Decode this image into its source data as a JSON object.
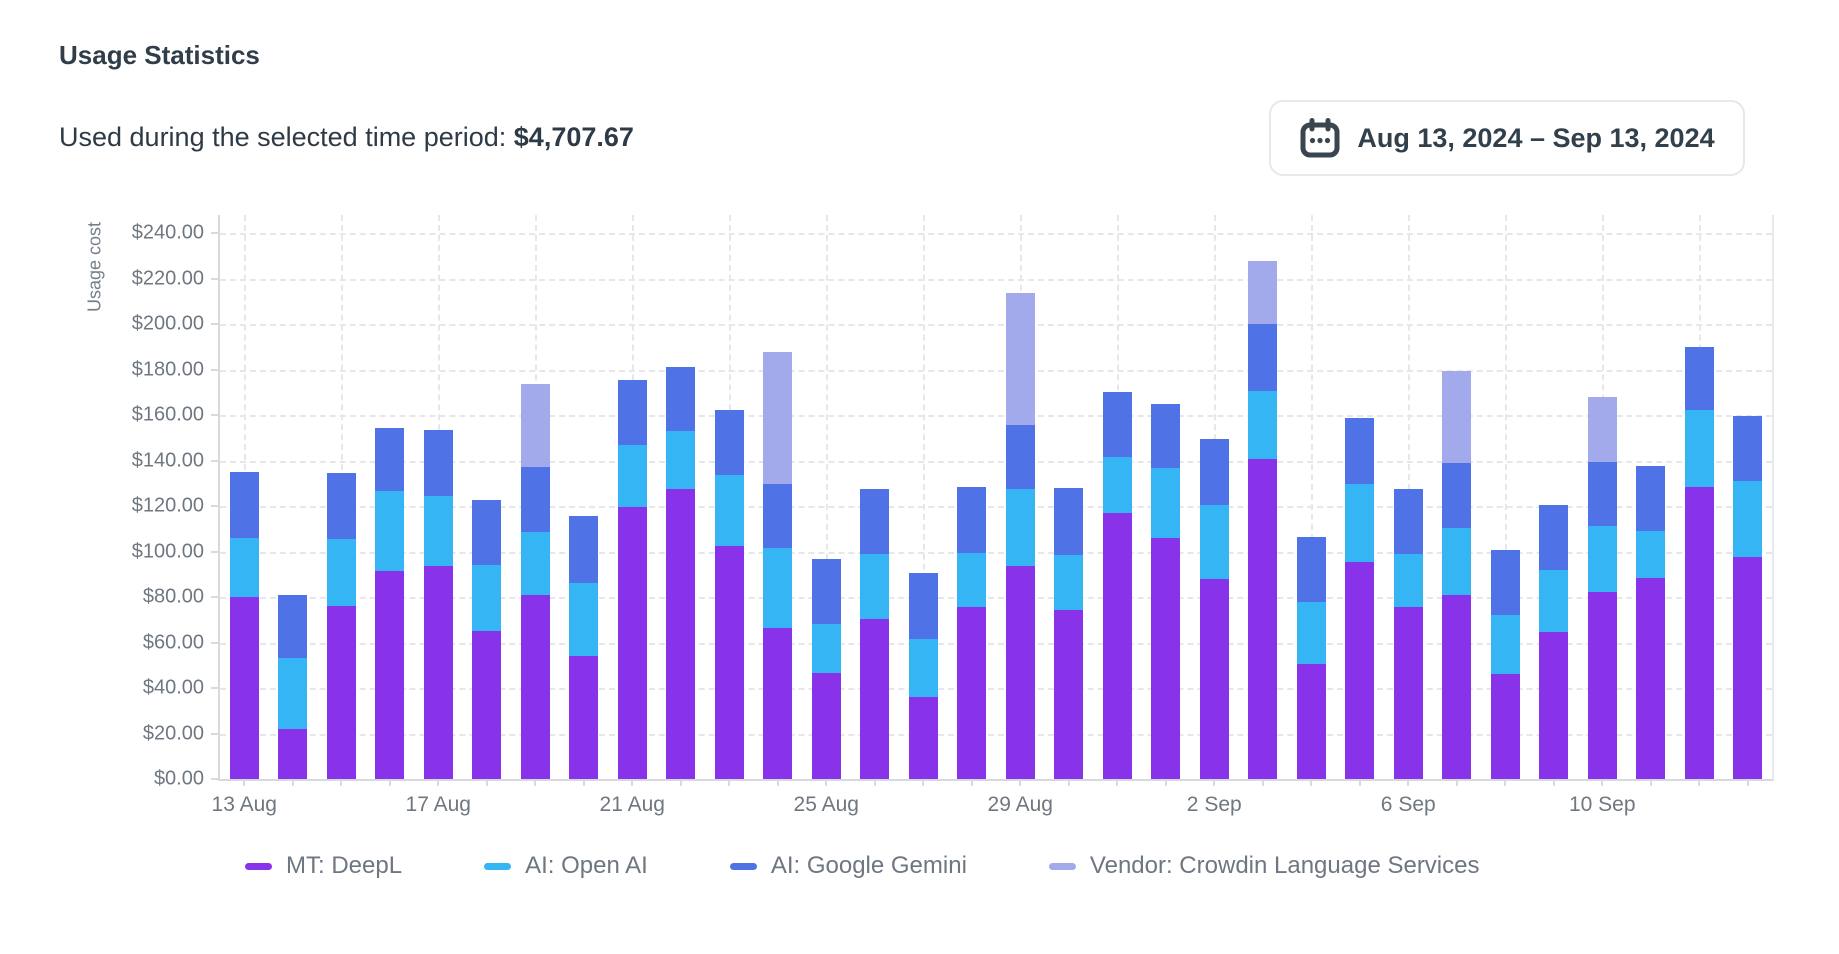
{
  "header": {
    "title": "Usage Statistics",
    "subtitle": "Used during the selected time period:",
    "total": "$4,707.67"
  },
  "date_picker": {
    "label": "Aug 13, 2024 – Sep 13, 2024",
    "icon": "calendar-icon"
  },
  "chart_data": {
    "type": "bar",
    "stacked": true,
    "ylabel": "Usage cost",
    "ylim": [
      0,
      240
    ],
    "ytick_step": 20,
    "ytick_format": "$0.00 currency, two decimals",
    "grid": "dashed",
    "legend_position": "bottom",
    "xtick_every": 4,
    "xticks_shown": [
      "13 Aug",
      "17 Aug",
      "21 Aug",
      "25 Aug",
      "29 Aug",
      "2 Sep",
      "6 Sep",
      "10 Sep"
    ],
    "categories": [
      "13 Aug",
      "14 Aug",
      "15 Aug",
      "16 Aug",
      "17 Aug",
      "18 Aug",
      "19 Aug",
      "20 Aug",
      "21 Aug",
      "22 Aug",
      "23 Aug",
      "24 Aug",
      "25 Aug",
      "26 Aug",
      "27 Aug",
      "28 Aug",
      "29 Aug",
      "30 Aug",
      "31 Aug",
      "1 Sep",
      "2 Sep",
      "3 Sep",
      "4 Sep",
      "5 Sep",
      "6 Sep",
      "7 Sep",
      "8 Sep",
      "9 Sep",
      "10 Sep",
      "11 Sep",
      "12 Sep",
      "13 Sep"
    ],
    "series": [
      {
        "name": "MT: DeepL",
        "color": "#8833ea",
        "values": [
          80,
          22,
          76,
          91.5,
          93.5,
          65,
          81,
          54,
          119.5,
          127.5,
          102.5,
          66.5,
          46.5,
          70.5,
          36,
          75.5,
          93.5,
          74.5,
          117,
          106,
          88,
          140.5,
          50.5,
          95.5,
          75.5,
          81,
          46,
          64.5,
          82,
          88.5,
          128.5,
          97.5
        ]
      },
      {
        "name": "AI: Open AI",
        "color": "#35b5f3",
        "values": [
          26,
          31,
          29.5,
          35,
          31,
          29,
          27.5,
          32,
          27.5,
          25.5,
          31,
          35,
          21.5,
          28.5,
          25.5,
          24,
          34,
          24,
          24.5,
          30.5,
          32.5,
          30,
          27.5,
          34,
          23.5,
          29.5,
          26,
          27.5,
          29,
          20.5,
          33.5,
          33.5
        ]
      },
      {
        "name": "AI: Google Gemini",
        "color": "#4f72e6",
        "values": [
          29,
          28,
          29,
          28,
          29,
          28.5,
          28.5,
          29.5,
          28.5,
          28,
          28.5,
          28,
          28.5,
          28.5,
          29,
          29,
          28,
          29.5,
          28.5,
          28.5,
          29,
          29.5,
          28.5,
          29,
          28.5,
          28.5,
          28.5,
          28.5,
          28.5,
          28.5,
          28,
          28.5
        ]
      },
      {
        "name": "Vendor: Crowdin Language Services",
        "color": "#a2aaec",
        "values": [
          0,
          0,
          0,
          0,
          0,
          0,
          36.5,
          0,
          0,
          0,
          0,
          58,
          0,
          0,
          0,
          0,
          58,
          0,
          0,
          0,
          0,
          27.5,
          0,
          0,
          0,
          40.5,
          0,
          0,
          28.5,
          0,
          0,
          0
        ]
      }
    ]
  }
}
